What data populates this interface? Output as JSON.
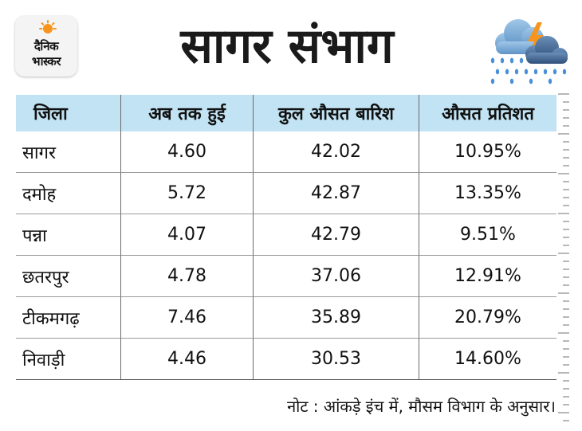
{
  "logo": {
    "line1": "दैनिक",
    "line2": "भास्कर",
    "icon": "sun-icon",
    "accent": "#f7941d"
  },
  "title": "सागर संभाग",
  "weather_icon": "rain-thunder-cloud-icon",
  "table": {
    "header_bg": "#c2e3f3",
    "columns": [
      "जिला",
      "अब तक हुई",
      "कुल औसत बारिश",
      "औसत प्रतिशत"
    ],
    "rows": [
      {
        "district": "सागर",
        "so_far": "4.60",
        "avg_total": "42.02",
        "percent": "10.95%"
      },
      {
        "district": "दमोह",
        "so_far": "5.72",
        "avg_total": "42.87",
        "percent": "13.35%"
      },
      {
        "district": "पन्ना",
        "so_far": "4.07",
        "avg_total": "42.79",
        "percent": "9.51%"
      },
      {
        "district": "छतरपुर",
        "so_far": "4.78",
        "avg_total": "37.06",
        "percent": "12.91%"
      },
      {
        "district": "टीकमगढ़",
        "so_far": "7.46",
        "avg_total": "35.89",
        "percent": "20.79%"
      },
      {
        "district": "निवाड़ी",
        "so_far": "4.46",
        "avg_total": "30.53",
        "percent": "14.60%"
      }
    ]
  },
  "note": "नोट : आंकड़े इंच में, मौसम विभाग के अनुसार।"
}
